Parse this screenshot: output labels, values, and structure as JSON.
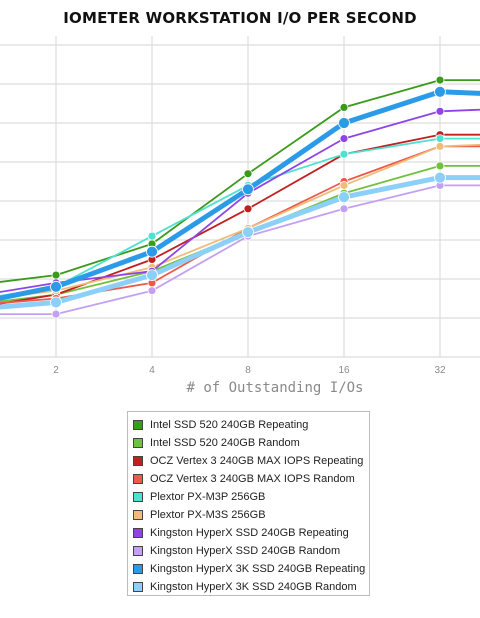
{
  "chart_data": {
    "type": "line",
    "title": "IOMETER WORKSTATION I/O PER SECOND",
    "xlabel": "# of Outstanding I/Os",
    "ylabel": "",
    "x": [
      1,
      2,
      4,
      8,
      16,
      32,
      64
    ],
    "x_tick_labels": [
      "2",
      "4",
      "8",
      "16",
      "32"
    ],
    "ylim": [
      0,
      9
    ],
    "grid": true,
    "legend_position": "bottom",
    "series": [
      {
        "name": "Intel SSD 520 240GB Repeating",
        "color": "#3a9a1a",
        "values": [
          1.8,
          2.1,
          2.9,
          4.7,
          6.4,
          7.1,
          7.1
        ]
      },
      {
        "name": "Intel SSD 520 240GB Random",
        "color": "#72c13d",
        "values": [
          1.3,
          1.6,
          2.2,
          3.2,
          4.2,
          4.9,
          4.9
        ]
      },
      {
        "name": "OCZ Vertex 3 240GB MAX IOPS Repeating",
        "color": "#c02020",
        "values": [
          1.2,
          1.6,
          2.5,
          3.8,
          5.2,
          5.7,
          5.7
        ]
      },
      {
        "name": "OCZ Vertex 3 240GB MAX IOPS Random",
        "color": "#ee5a4a",
        "values": [
          1.3,
          1.5,
          1.9,
          3.3,
          4.5,
          5.4,
          5.4
        ]
      },
      {
        "name": "Plextor PX-M3P 256GB",
        "color": "#4fe1d0",
        "values": [
          1.4,
          1.8,
          3.1,
          4.4,
          5.2,
          5.6,
          5.6
        ]
      },
      {
        "name": "Plextor PX-M3S 256GB",
        "color": "#eebd7a",
        "values": [
          1.4,
          1.7,
          2.3,
          3.3,
          4.4,
          5.4,
          5.5
        ]
      },
      {
        "name": "Kingston HyperX SSD 240GB Repeating",
        "color": "#8f45e6",
        "values": [
          1.5,
          1.9,
          2.2,
          4.2,
          5.6,
          6.3,
          6.4
        ]
      },
      {
        "name": "Kingston HyperX SSD 240GB Random",
        "color": "#c4a0f4",
        "values": [
          1.1,
          1.1,
          1.7,
          3.1,
          3.8,
          4.4,
          4.4
        ]
      },
      {
        "name": "Kingston HyperX 3K SSD 240GB Repeating",
        "color": "#2b9be8",
        "values": [
          1.3,
          1.8,
          2.7,
          4.3,
          6.0,
          6.8,
          6.7
        ]
      },
      {
        "name": "Kingston HyperX 3K SSD 240GB Random",
        "color": "#8ccff8",
        "values": [
          1.2,
          1.4,
          2.1,
          3.2,
          4.1,
          4.6,
          4.6
        ]
      }
    ]
  }
}
